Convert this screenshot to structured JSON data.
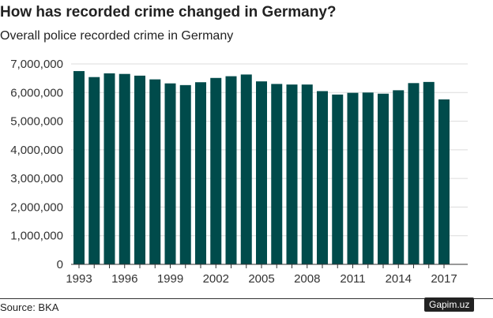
{
  "title": "How has recorded crime changed in Germany?",
  "subtitle": "Overall police recorded crime in Germany",
  "source": "Source: BKA",
  "watermark": "Gapim.uz",
  "chart_data": {
    "type": "bar",
    "title": "How has recorded crime changed in Germany?",
    "subtitle": "Overall police recorded crime in Germany",
    "xlabel": "",
    "ylabel": "",
    "ylim": [
      0,
      7000000
    ],
    "grid": true,
    "color": "#004b4b",
    "yticks": [
      "0",
      "1,000,000",
      "2,000,000",
      "3,000,000",
      "4,000,000",
      "5,000,000",
      "6,000,000",
      "7,000,000"
    ],
    "xtick_labels": [
      "1993",
      "1996",
      "1999",
      "2002",
      "2005",
      "2008",
      "2011",
      "2014",
      "2017"
    ],
    "categories": [
      "1993",
      "1994",
      "1995",
      "1996",
      "1997",
      "1998",
      "1999",
      "2000",
      "2001",
      "2002",
      "2003",
      "2004",
      "2005",
      "2006",
      "2007",
      "2008",
      "2009",
      "2010",
      "2011",
      "2012",
      "2013",
      "2014",
      "2015",
      "2016",
      "2017"
    ],
    "values": [
      6750000,
      6540000,
      6670000,
      6650000,
      6590000,
      6460000,
      6320000,
      6260000,
      6360000,
      6510000,
      6570000,
      6630000,
      6390000,
      6300000,
      6280000,
      6280000,
      6050000,
      5930000,
      5990000,
      6000000,
      5960000,
      6080000,
      6330000,
      6370000,
      5760000
    ]
  }
}
